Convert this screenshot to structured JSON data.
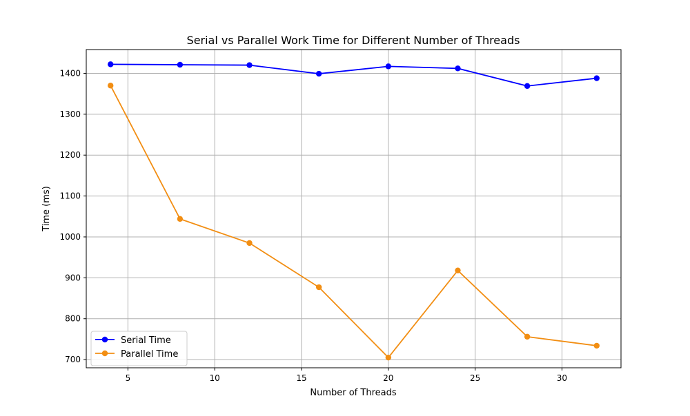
{
  "chart_data": {
    "type": "line",
    "title": "Serial vs Parallel Work Time for Different Number of Threads",
    "xlabel": "Number of Threads",
    "ylabel": "Time (ms)",
    "xlim": [
      2.6,
      33.4
    ],
    "ylim": [
      680,
      1458
    ],
    "xticks": [
      5,
      10,
      15,
      20,
      25,
      30
    ],
    "yticks": [
      700,
      800,
      900,
      1000,
      1100,
      1200,
      1300,
      1400
    ],
    "grid": true,
    "legend_position": "lower-left",
    "x": [
      4,
      8,
      12,
      16,
      20,
      24,
      28,
      32
    ],
    "series": [
      {
        "name": "Serial Time",
        "color": "#0000ff",
        "marker": "circle",
        "values": [
          1422,
          1421,
          1420,
          1399,
          1417,
          1412,
          1369,
          1388
        ]
      },
      {
        "name": "Parallel Time",
        "color": "#f28e13",
        "marker": "circle",
        "values": [
          1370,
          1044,
          985,
          877,
          705,
          918,
          756,
          734
        ]
      }
    ]
  }
}
